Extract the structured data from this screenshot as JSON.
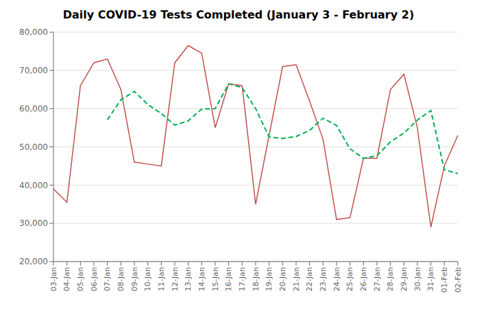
{
  "chart_data": {
    "type": "line",
    "title": "Daily COVID-19 Tests Completed (January 3 - February 2)",
    "categories": [
      "03-Jan",
      "04-Jan",
      "05-Jan",
      "06-Jan",
      "07-Jan",
      "08-Jan",
      "09-Jan",
      "10-Jan",
      "11-Jan",
      "12-Jan",
      "13-Jan",
      "14-Jan",
      "15-Jan",
      "16-Jan",
      "17-Jan",
      "18-Jan",
      "19-Jan",
      "20-Jan",
      "21-Jan",
      "22-Jan",
      "23-Jan",
      "24-Jan",
      "25-Jan",
      "26-Jan",
      "27-Jan",
      "28-Jan",
      "29-Jan",
      "30-Jan",
      "31-Jan",
      "01-Feb",
      "02-Feb"
    ],
    "series": [
      {
        "color": "#c0504d",
        "line_style": "solid",
        "values": [
          39000,
          35500,
          66000,
          72000,
          73000,
          65000,
          46000,
          45500,
          45000,
          72000,
          76500,
          74500,
          55000,
          66500,
          66000,
          35000,
          53000,
          71000,
          71500,
          62000,
          52000,
          31000,
          31500,
          47000,
          47000,
          65000,
          69000,
          55000,
          29000,
          45000,
          53000
        ]
      },
      {
        "color": "#00b050",
        "line_style": "dashed",
        "values": [
          null,
          null,
          null,
          null,
          57100,
          62300,
          64500,
          61100,
          58700,
          55700,
          56800,
          59900,
          60000,
          66500,
          65500,
          60000,
          52600,
          52200,
          52700,
          54300,
          57500,
          55600,
          49500,
          47000,
          47700,
          51300,
          53600,
          57000,
          59500,
          44000,
          43000
        ]
      }
    ],
    "ylim": [
      20000,
      80000
    ],
    "yticks": [
      {
        "value": 20000,
        "label": "20,000"
      },
      {
        "value": 30000,
        "label": "30,000"
      },
      {
        "value": 40000,
        "label": "40,000"
      },
      {
        "value": 50000,
        "label": "50,000"
      },
      {
        "value": 60000,
        "label": "60,000"
      },
      {
        "value": 70000,
        "label": "70,000"
      },
      {
        "value": 80000,
        "label": "80,000"
      }
    ],
    "grid": true
  }
}
